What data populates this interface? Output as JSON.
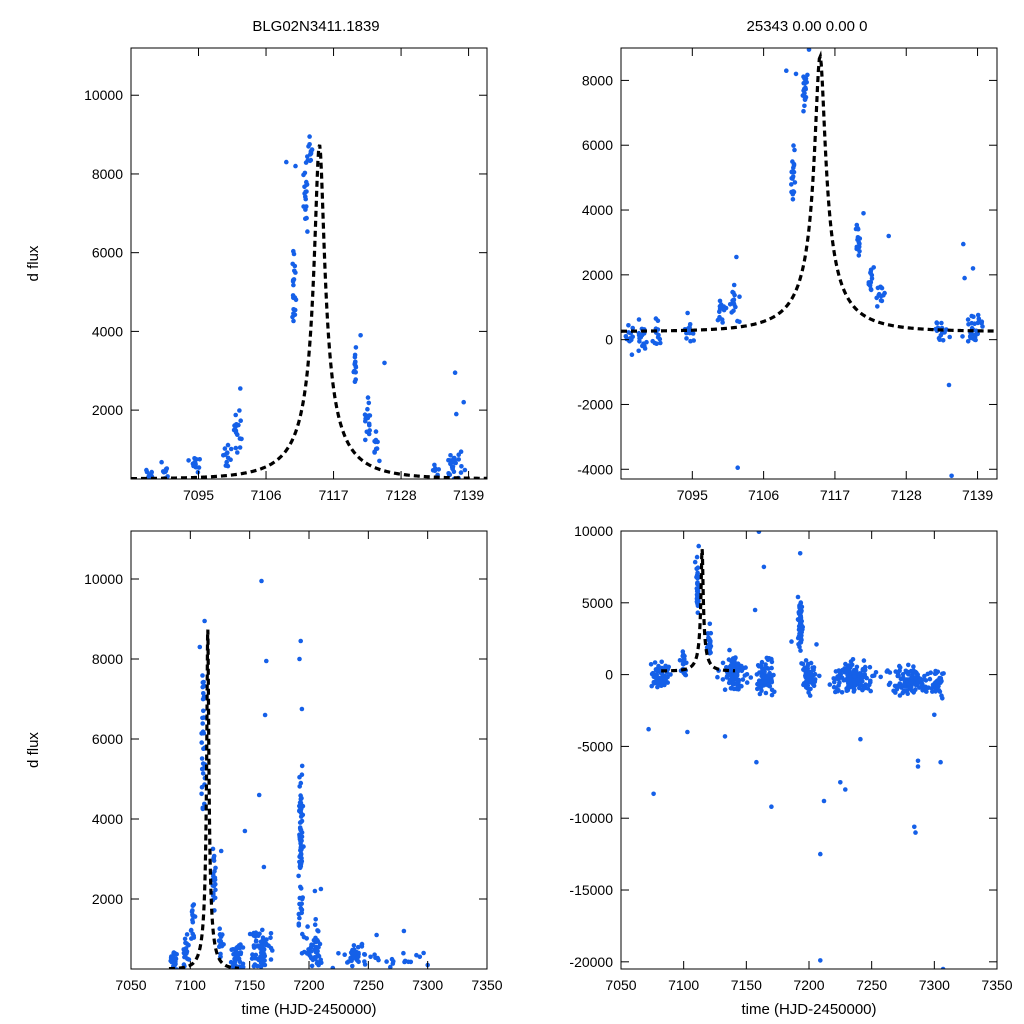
{
  "figure": {
    "title_left": "BLG02N3411.1839",
    "title_right": "25343  0.00  0.00  0",
    "point_color": "#1560e8",
    "model_color": "#000000"
  },
  "chart_data": [
    {
      "type": "scatter",
      "id": "top-left",
      "ylabel": "d flux",
      "xlabel": "",
      "xlim": [
        7084,
        7142
      ],
      "ylim": [
        250,
        11200
      ],
      "xticks": [
        7095,
        7106,
        7117,
        7128,
        7139
      ],
      "yticks": [
        2000,
        4000,
        6000,
        8000,
        10000
      ],
      "model": {
        "t0": 7114.7,
        "tE": 9.5,
        "u0": 0.083,
        "base": 250
      },
      "series": [
        {
          "name": "photometry",
          "clusters": [
            {
              "t": 7087,
              "y": 350,
              "dt": 0.6,
              "dy": 180,
              "n": 10
            },
            {
              "t": 7089.5,
              "y": 400,
              "dt": 0.6,
              "dy": 200,
              "n": 10
            },
            {
              "t": 7094.5,
              "y": 600,
              "dt": 0.7,
              "dy": 220,
              "n": 14
            },
            {
              "t": 7099.5,
              "y": 900,
              "dt": 0.6,
              "dy": 250,
              "n": 12
            },
            {
              "t": 7101.5,
              "y": 1400,
              "dt": 0.6,
              "dy": 450,
              "n": 16
            },
            {
              "t": 7110.5,
              "y": 5000,
              "dt": 0.3,
              "dy": 900,
              "n": 20
            },
            {
              "t": 7112.5,
              "y": 7600,
              "dt": 0.3,
              "dy": 700,
              "n": 20
            },
            {
              "t": 7113.2,
              "y": 8600,
              "dt": 0.3,
              "dy": 250,
              "n": 10
            },
            {
              "t": 7120.5,
              "y": 3000,
              "dt": 0.3,
              "dy": 400,
              "n": 14
            },
            {
              "t": 7122.5,
              "y": 1800,
              "dt": 0.5,
              "dy": 400,
              "n": 16
            },
            {
              "t": 7124,
              "y": 1100,
              "dt": 0.5,
              "dy": 300,
              "n": 10
            },
            {
              "t": 7137,
              "y": 500,
              "dt": 1.2,
              "dy": 300,
              "n": 28
            },
            {
              "t": 7133.5,
              "y": 500,
              "dt": 0.5,
              "dy": 150,
              "n": 6
            }
          ],
          "points": [
            {
              "x": 7109.3,
              "y": 8300
            },
            {
              "x": 7110.8,
              "y": 8200
            },
            {
              "x": 7113.1,
              "y": 8950
            },
            {
              "x": 7125.3,
              "y": 3200
            },
            {
              "x": 7136.8,
              "y": 2950
            },
            {
              "x": 7138.2,
              "y": 2200
            },
            {
              "x": 7137.0,
              "y": 1900
            },
            {
              "x": 7101.8,
              "y": 2550
            },
            {
              "x": 7121.4,
              "y": 3900
            }
          ]
        }
      ]
    },
    {
      "type": "scatter",
      "id": "top-right",
      "ylabel": "",
      "xlabel": "",
      "xlim": [
        7084,
        7142
      ],
      "ylim": [
        -4300,
        9000
      ],
      "xticks": [
        7095,
        7106,
        7117,
        7128,
        7139
      ],
      "yticks": [
        -4000,
        -2000,
        0,
        2000,
        4000,
        6000,
        8000
      ],
      "model": {
        "t0": 7114.7,
        "tE": 9.5,
        "u0": 0.083,
        "base": 250
      },
      "series": [
        {
          "name": "photometry",
          "clusters": [
            {
              "t": 7085.5,
              "y": 50,
              "dt": 0.5,
              "dy": 350,
              "n": 14
            },
            {
              "t": 7087.3,
              "y": 0,
              "dt": 0.6,
              "dy": 400,
              "n": 16
            },
            {
              "t": 7089.5,
              "y": 200,
              "dt": 0.7,
              "dy": 350,
              "n": 12
            },
            {
              "t": 7094.5,
              "y": 300,
              "dt": 0.7,
              "dy": 380,
              "n": 16
            },
            {
              "t": 7099.5,
              "y": 850,
              "dt": 0.6,
              "dy": 350,
              "n": 14
            },
            {
              "t": 7101.5,
              "y": 1100,
              "dt": 0.6,
              "dy": 450,
              "n": 16
            },
            {
              "t": 7110.5,
              "y": 5100,
              "dt": 0.3,
              "dy": 700,
              "n": 20
            },
            {
              "t": 7112.3,
              "y": 7600,
              "dt": 0.3,
              "dy": 600,
              "n": 20
            },
            {
              "t": 7120.5,
              "y": 3000,
              "dt": 0.3,
              "dy": 450,
              "n": 16
            },
            {
              "t": 7122.5,
              "y": 1800,
              "dt": 0.5,
              "dy": 450,
              "n": 14
            },
            {
              "t": 7124,
              "y": 1300,
              "dt": 0.6,
              "dy": 350,
              "n": 12
            },
            {
              "t": 7133.5,
              "y": 200,
              "dt": 0.8,
              "dy": 400,
              "n": 16
            },
            {
              "t": 7138.5,
              "y": 350,
              "dt": 1.3,
              "dy": 350,
              "n": 32
            }
          ],
          "points": [
            {
              "x": 7109.5,
              "y": 8300
            },
            {
              "x": 7111.0,
              "y": 8200
            },
            {
              "x": 7113.0,
              "y": 8950
            },
            {
              "x": 7125.3,
              "y": 3200
            },
            {
              "x": 7136.8,
              "y": 2950
            },
            {
              "x": 7138.3,
              "y": 2200
            },
            {
              "x": 7137.0,
              "y": 1900
            },
            {
              "x": 7101.8,
              "y": 2550
            },
            {
              "x": 7121.4,
              "y": 3900
            },
            {
              "x": 7102.0,
              "y": -3950
            },
            {
              "x": 7135.0,
              "y": -4200
            },
            {
              "x": 7134.6,
              "y": -1400
            }
          ]
        }
      ]
    },
    {
      "type": "scatter",
      "id": "bottom-left",
      "ylabel": "d flux",
      "xlabel": "time (HJD-2450000)",
      "xlim": [
        7050,
        7350
      ],
      "ylim": [
        250,
        11200
      ],
      "xticks": [
        7050,
        7100,
        7150,
        7200,
        7250,
        7300,
        7350
      ],
      "yticks": [
        2000,
        4000,
        6000,
        8000,
        10000
      ],
      "model": {
        "t0": 7114.7,
        "tE": 9.5,
        "u0": 0.083,
        "base": 250,
        "tmin": 7082,
        "tmax": 7141
      },
      "series": [
        {
          "name": "photometry",
          "clusters": [
            {
              "t": 7086,
              "y": 450,
              "dt": 3,
              "dy": 250,
              "n": 24
            },
            {
              "t": 7096,
              "y": 700,
              "dt": 2,
              "dy": 350,
              "n": 20
            },
            {
              "t": 7102,
              "y": 1400,
              "dt": 1.5,
              "dy": 600,
              "n": 16
            },
            {
              "t": 7111,
              "y": 6000,
              "dt": 1.0,
              "dy": 1700,
              "n": 36
            },
            {
              "t": 7120,
              "y": 2500,
              "dt": 1.2,
              "dy": 700,
              "n": 24
            },
            {
              "t": 7126,
              "y": 900,
              "dt": 1.5,
              "dy": 450,
              "n": 16
            },
            {
              "t": 7140,
              "y": 550,
              "dt": 5,
              "dy": 350,
              "n": 40
            },
            {
              "t": 7160,
              "y": 700,
              "dt": 8,
              "dy": 450,
              "n": 60
            },
            {
              "t": 7193,
              "y": 3500,
              "dt": 1.5,
              "dy": 1800,
              "n": 80
            },
            {
              "t": 7205,
              "y": 700,
              "dt": 8,
              "dy": 450,
              "n": 45
            },
            {
              "t": 7240,
              "y": 550,
              "dt": 15,
              "dy": 300,
              "n": 40
            },
            {
              "t": 7285,
              "y": 450,
              "dt": 15,
              "dy": 200,
              "n": 14
            }
          ],
          "points": [
            {
              "x": 7160,
              "y": 9950
            },
            {
              "x": 7164,
              "y": 7950
            },
            {
              "x": 7163,
              "y": 6600
            },
            {
              "x": 7193,
              "y": 8450
            },
            {
              "x": 7192,
              "y": 8000
            },
            {
              "x": 7194,
              "y": 6750
            },
            {
              "x": 7158,
              "y": 4600
            },
            {
              "x": 7146,
              "y": 3700
            },
            {
              "x": 7162,
              "y": 2800
            },
            {
              "x": 7210,
              "y": 2250
            },
            {
              "x": 7205,
              "y": 2200
            },
            {
              "x": 7112,
              "y": 8950
            },
            {
              "x": 7108,
              "y": 8300
            },
            {
              "x": 7126,
              "y": 3200
            },
            {
              "x": 7280,
              "y": 1200
            },
            {
              "x": 7257,
              "y": 1100
            },
            {
              "x": 7300,
              "y": 350
            }
          ]
        }
      ]
    },
    {
      "type": "scatter",
      "id": "bottom-right",
      "ylabel": "",
      "xlabel": "time (HJD-2450000)",
      "xlim": [
        7050,
        7350
      ],
      "ylim": [
        -20500,
        10000
      ],
      "xticks": [
        7050,
        7100,
        7150,
        7200,
        7250,
        7300,
        7350
      ],
      "yticks": [
        -20000,
        -15000,
        -10000,
        -5000,
        0,
        5000,
        10000
      ],
      "model": {
        "t0": 7114.7,
        "tE": 9.5,
        "u0": 0.083,
        "base": 250,
        "tmin": 7082,
        "tmax": 7141
      },
      "series": [
        {
          "name": "photometry",
          "clusters": [
            {
              "t": 7082,
              "y": 0,
              "dt": 6,
              "dy": 700,
              "n": 60
            },
            {
              "t": 7100,
              "y": 800,
              "dt": 2,
              "dy": 700,
              "n": 20
            },
            {
              "t": 7111,
              "y": 6000,
              "dt": 1.2,
              "dy": 1800,
              "n": 30
            },
            {
              "t": 7120,
              "y": 2200,
              "dt": 1.5,
              "dy": 900,
              "n": 20
            },
            {
              "t": 7140,
              "y": 0,
              "dt": 8,
              "dy": 1000,
              "n": 90
            },
            {
              "t": 7165,
              "y": 0,
              "dt": 6,
              "dy": 1100,
              "n": 70
            },
            {
              "t": 7193,
              "y": 3500,
              "dt": 1.5,
              "dy": 1600,
              "n": 60
            },
            {
              "t": 7200,
              "y": -100,
              "dt": 5,
              "dy": 900,
              "n": 70
            },
            {
              "t": 7235,
              "y": -200,
              "dt": 14,
              "dy": 900,
              "n": 130
            },
            {
              "t": 7280,
              "y": -400,
              "dt": 14,
              "dy": 800,
              "n": 110
            },
            {
              "t": 7303,
              "y": -600,
              "dt": 4,
              "dy": 900,
              "n": 40
            }
          ],
          "points": [
            {
              "x": 7072,
              "y": -3800
            },
            {
              "x": 7076,
              "y": -8300
            },
            {
              "x": 7103,
              "y": -4000
            },
            {
              "x": 7133,
              "y": -4300
            },
            {
              "x": 7158,
              "y": -6100
            },
            {
              "x": 7170,
              "y": -9200
            },
            {
              "x": 7212,
              "y": -8800
            },
            {
              "x": 7225,
              "y": -7500
            },
            {
              "x": 7229,
              "y": -8000
            },
            {
              "x": 7209,
              "y": -12500
            },
            {
              "x": 7209,
              "y": -19900
            },
            {
              "x": 7285,
              "y": -11000
            },
            {
              "x": 7284,
              "y": -10600
            },
            {
              "x": 7287,
              "y": -6000
            },
            {
              "x": 7287,
              "y": -6400
            },
            {
              "x": 7305,
              "y": -6100
            },
            {
              "x": 7307,
              "y": -20500
            },
            {
              "x": 7160,
              "y": 9950
            },
            {
              "x": 7164,
              "y": 7500
            },
            {
              "x": 7193,
              "y": 8450
            },
            {
              "x": 7112,
              "y": 8950
            },
            {
              "x": 7157,
              "y": 4500
            },
            {
              "x": 7186,
              "y": 2300
            },
            {
              "x": 7206,
              "y": 2100
            },
            {
              "x": 7300,
              "y": -2800
            },
            {
              "x": 7241,
              "y": -4500
            }
          ]
        }
      ]
    }
  ]
}
